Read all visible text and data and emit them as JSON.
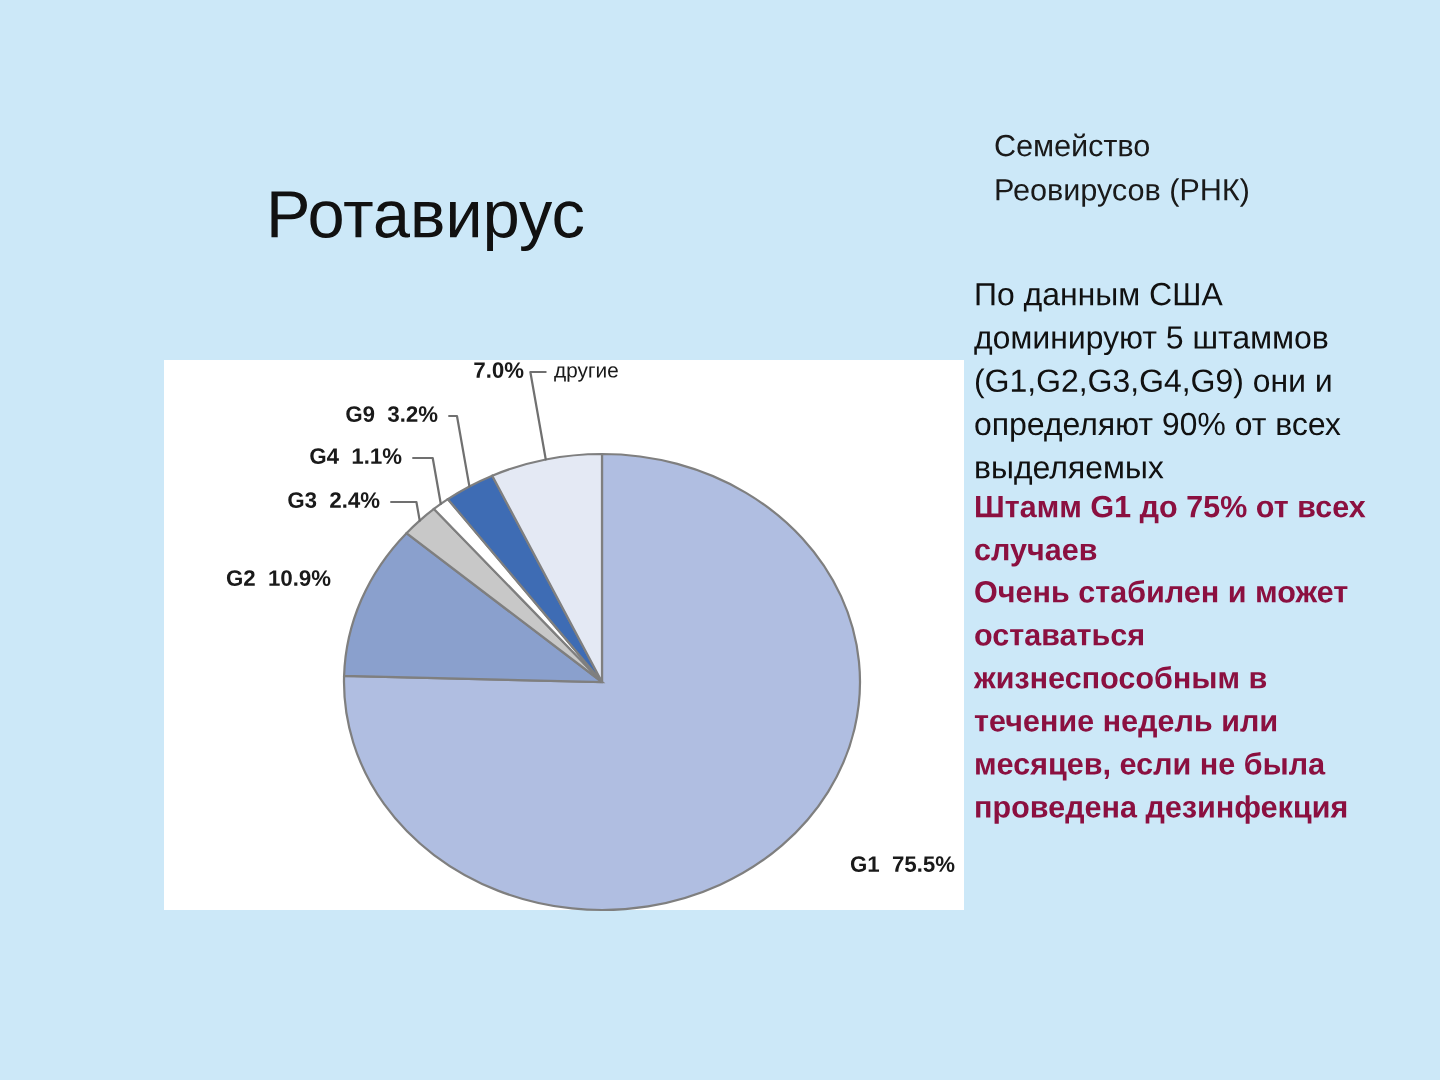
{
  "chart_data": {
    "type": "pie",
    "title": "Ротавирус",
    "subtitle": "Семейство\nРеовирусов (РНК)",
    "categories": [
      "G1",
      "G2",
      "G3",
      "G4",
      "G9",
      "другие"
    ],
    "values": [
      75.5,
      10.9,
      2.4,
      1.1,
      3.2,
      7.0
    ],
    "colors": [
      "#b0bee1",
      "#8aa0cd",
      "#c8c8c8",
      "#ffffff",
      "#3e6cb4",
      "#e4e9f4"
    ],
    "value_labels": [
      "75.5%",
      "10.9%",
      "2.4%",
      "1.1%",
      "3.2%",
      "7.0%"
    ],
    "annotations": [
      "По данным США\nдоминируют 5 штаммов\n(G1,G2,G3,G4,G9) они и\nопределяют 90% от всех\nвыделяемых",
      "Штамм G1 до 75% от всех\nслучаев",
      "Очень стабилен и может\nоставаться\nжизнеспособным в\nтечение недель или\nмесяцев, если не была\nпроведена дезинфекция"
    ]
  }
}
